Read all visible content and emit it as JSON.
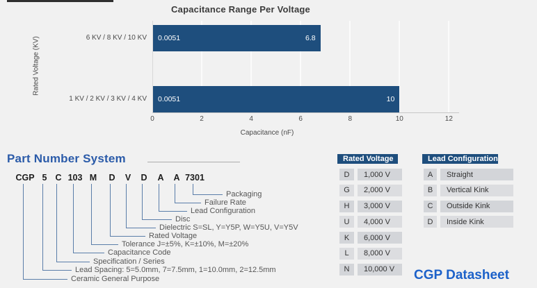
{
  "colors": {
    "bar_navy": "#1E4E7D",
    "table_header_navy": "#1E4E7D",
    "heading_blue": "#2B5BA9",
    "link_blue": "#1C61C9",
    "connector_blue": "#5A7DA9"
  },
  "chart": {
    "title": "Capacitance Range Per Voltage",
    "x_axis_label": "Capacitance (nF)",
    "y_axis_label": "Rated Voltage  (KV)",
    "x_ticks": [
      "0",
      "2",
      "4",
      "6",
      "8",
      "10",
      "12"
    ],
    "bars": [
      {
        "category": "6 KV / 8 KV / 10 KV",
        "start_label": "0.0051",
        "end_label": "6.8",
        "value": 6.8
      },
      {
        "category": "1 KV / 2 KV / 3 KV / 4 KV",
        "start_label": "0.0051",
        "end_label": "10",
        "value": 10
      }
    ]
  },
  "chart_data": {
    "type": "bar",
    "orientation": "horizontal",
    "title": "Capacitance Range Per Voltage",
    "xlabel": "Capacitance (nF)",
    "ylabel": "Rated Voltage (KV)",
    "categories": [
      "6 KV / 8 KV / 10 KV",
      "1 KV / 2 KV / 3 KV / 4 KV"
    ],
    "values": [
      6.8,
      10
    ],
    "range_min_nF": [
      0.0051,
      0.0051
    ],
    "range_max_nF": [
      6.8,
      10
    ],
    "bar_left_labels": [
      "0.0051",
      "0.0051"
    ],
    "bar_right_labels": [
      "6.8",
      "10"
    ],
    "xlim": [
      0,
      12
    ],
    "x_tick_values": [
      0,
      2,
      4,
      6,
      8,
      10,
      12
    ],
    "grid": true,
    "legend": false,
    "bar_color": "#1E4E7D"
  },
  "part_number_system": {
    "heading": "Part Number System",
    "items": [
      {
        "code": "CGP",
        "label": "Ceramic General Purpose"
      },
      {
        "code": "5",
        "label": "Lead Spacing: 5=5.0mm, 7=7.5mm, 1=10.0mm, 2=12.5mm"
      },
      {
        "code": "C",
        "label": "Specification / Series"
      },
      {
        "code": "103",
        "label": "Capacitance Code"
      },
      {
        "code": "M",
        "label": "Tolerance J=±5%, K=±10%, M=±20%"
      },
      {
        "code": "D",
        "label": "Rated Voltage"
      },
      {
        "code": "V",
        "label": "Dielectric S=SL, Y=Y5P, W=Y5U, V=Y5V"
      },
      {
        "code": "D",
        "label": "Disc"
      },
      {
        "code": "A",
        "label": "Lead Configuration"
      },
      {
        "code": "A",
        "label": "Failure Rate"
      },
      {
        "code": "7301",
        "label": "Packaging"
      }
    ]
  },
  "rated_voltage_table": {
    "header": "Rated Voltage",
    "rows": [
      {
        "code": "D",
        "value": "1,000 V"
      },
      {
        "code": "G",
        "value": "2,000 V"
      },
      {
        "code": "H",
        "value": "3,000 V"
      },
      {
        "code": "U",
        "value": "4,000 V"
      },
      {
        "code": "K",
        "value": "6,000 V"
      },
      {
        "code": "L",
        "value": "8,000 V"
      },
      {
        "code": "N",
        "value": "10,000 V"
      }
    ]
  },
  "lead_configuration_table": {
    "header": "Lead Configuration",
    "rows": [
      {
        "code": "A",
        "value": "Straight"
      },
      {
        "code": "B",
        "value": "Vertical Kink"
      },
      {
        "code": "C",
        "value": "Outside Kink"
      },
      {
        "code": "D",
        "value": "Inside Kink"
      }
    ]
  },
  "footer": {
    "datasheet_link": "CGP Datasheet"
  }
}
